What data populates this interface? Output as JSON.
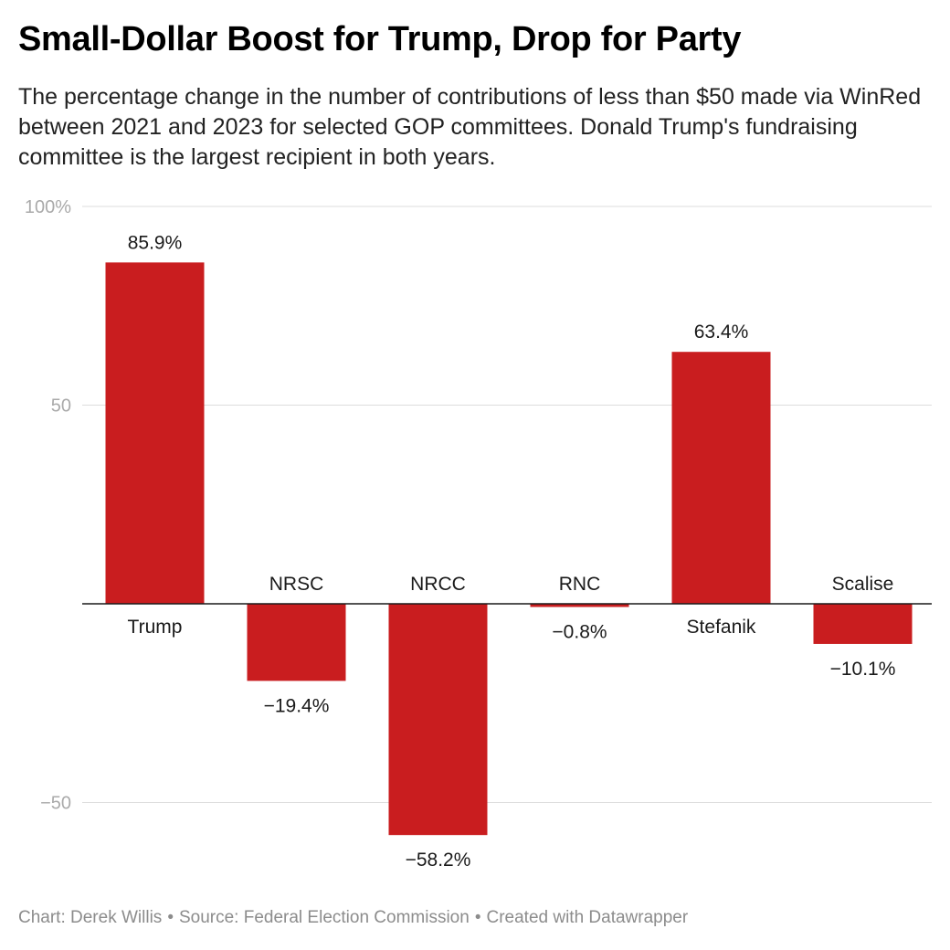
{
  "header": {
    "title": "Small-Dollar Boost for Trump, Drop for Party",
    "subtitle": "The percentage change in the number of contributions of less than $50 made via WinRed between 2021 and 2023 for selected GOP committees. Donald Trump's fundraising committee is the largest recipient in both years."
  },
  "footer": {
    "credit": "Chart: Derek Willis",
    "source": "Source: Federal Election Commission",
    "tool": "Created with Datawrapper",
    "separator": "•"
  },
  "chart_data": {
    "type": "bar",
    "categories": [
      "Trump",
      "NRSC",
      "NRCC",
      "RNC",
      "Stefanik",
      "Scalise"
    ],
    "values": [
      85.9,
      -19.4,
      -58.2,
      -0.8,
      63.4,
      -10.1
    ],
    "value_labels": [
      "85.9%",
      "−19.4%",
      "−58.2%",
      "−0.8%",
      "63.4%",
      "−10.1%"
    ],
    "yticks": [
      100,
      50,
      -50
    ],
    "ytick_labels": [
      "100%",
      "50",
      "−50"
    ],
    "ylim": [
      -60,
      100
    ],
    "grid": true,
    "bar_color": "#c91d1f",
    "xlabel": "",
    "ylabel": ""
  }
}
